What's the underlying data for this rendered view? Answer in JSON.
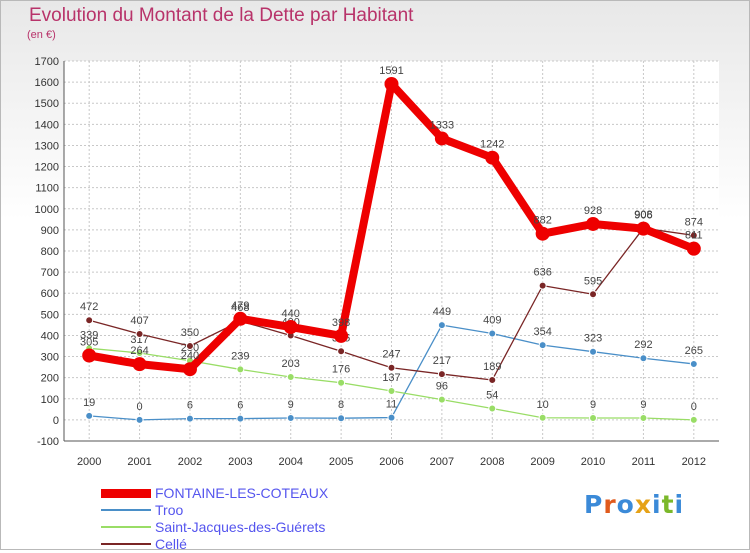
{
  "title": "Evolution du Montant de la Dette par Habitant",
  "unit": "(en €)",
  "logo_text": "Proxiti",
  "chart_data": {
    "type": "line",
    "title": "Evolution du Montant de la Dette par Habitant",
    "subtitle": "(en €)",
    "x": [
      "2000",
      "2001",
      "2002",
      "2003",
      "2004",
      "2005",
      "2006",
      "2007",
      "2008",
      "2009",
      "2010",
      "2011",
      "2012"
    ],
    "ylim": [
      -100,
      1700
    ],
    "yticks": [
      -100,
      0,
      100,
      200,
      300,
      400,
      500,
      600,
      700,
      800,
      900,
      1000,
      1100,
      1200,
      1300,
      1400,
      1500,
      1600,
      1700
    ],
    "grid": true,
    "legend_position": "bottom-left",
    "series": [
      {
        "name": "Troo",
        "color": "#4a8fc8",
        "values": [
          19,
          0,
          6,
          6,
          9,
          8,
          11,
          449,
          409,
          354,
          323,
          292,
          265
        ],
        "labels": [
          "19",
          "0",
          "6",
          "6",
          "9",
          "8",
          "11",
          "449",
          "409",
          "354",
          "323",
          "292",
          "265"
        ]
      },
      {
        "name": "Saint-Jacques-des-Guérets",
        "color": "#99dd66",
        "values": [
          339,
          317,
          280,
          239,
          203,
          176,
          137,
          96,
          54,
          10,
          9,
          9,
          0
        ],
        "labels": [
          "339",
          "317",
          "280",
          "239",
          "203",
          "176",
          "137",
          "96",
          "54",
          "10",
          "9",
          "9",
          "0"
        ]
      },
      {
        "name": "Cellé",
        "color": "#7a2626",
        "values": [
          472,
          407,
          350,
          468,
          400,
          325,
          247,
          217,
          189,
          636,
          595,
          908,
          874
        ],
        "labels": [
          "472",
          "407",
          "350",
          "468",
          "400",
          "325",
          "247",
          "217",
          "189",
          "636",
          "595",
          "908",
          "874"
        ]
      },
      {
        "name": "FONTAINE-LES-COTEAUX",
        "color": "#ee0000",
        "values": [
          305,
          264,
          240,
          479,
          440,
          398,
          1591,
          1333,
          1242,
          882,
          928,
          906,
          811
        ],
        "labels": [
          "305",
          "264",
          "240",
          "479",
          "440",
          "398",
          "1591",
          "1333",
          "1242",
          "882",
          "928",
          "906",
          "811"
        ]
      }
    ]
  }
}
